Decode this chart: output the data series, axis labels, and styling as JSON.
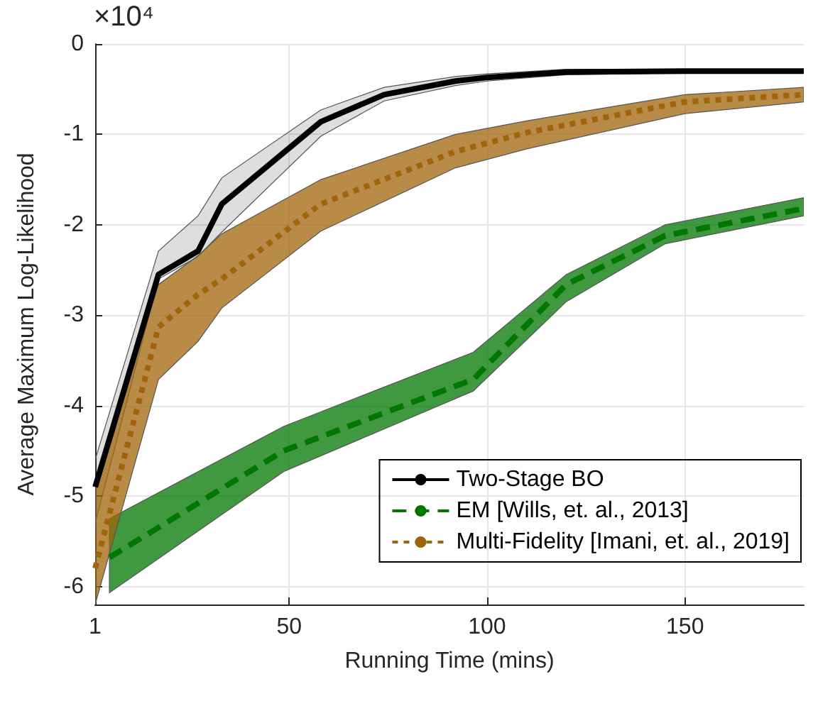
{
  "chart_data": {
    "type": "line",
    "xlabel": "Running Time (mins)",
    "ylabel": "Average Maximum Log-Likelihood",
    "annotations": [
      "×10⁴"
    ],
    "xlim": [
      1,
      180
    ],
    "xticks": [
      1,
      50,
      100,
      150
    ],
    "ylim": [
      -6.2,
      0
    ],
    "yticks": [
      -6,
      -5,
      -4,
      -3,
      -2,
      -1,
      0
    ],
    "grid": true,
    "legend": "bottom right",
    "marker": "none",
    "series": [
      {
        "name": "Two-Stage BO",
        "color": "#000000",
        "line_style": "solid",
        "x": [
          1,
          17,
          27,
          33,
          58,
          74,
          92,
          100,
          120,
          150,
          180
        ],
        "values": [
          -4.9,
          -2.55,
          -2.29,
          -1.77,
          -0.86,
          -0.56,
          -0.41,
          -0.37,
          -0.31,
          -0.3,
          -0.3
        ],
        "lower": [
          -5.3,
          -2.6,
          -2.35,
          -2.08,
          -1.02,
          -0.63,
          -0.46,
          -0.41,
          -0.34,
          -0.32,
          -0.32
        ],
        "upper": [
          -4.6,
          -2.29,
          -1.9,
          -1.48,
          -0.73,
          -0.48,
          -0.36,
          -0.33,
          -0.28,
          -0.28,
          -0.28
        ]
      },
      {
        "name": "EM [Wills, et. al., 2013]",
        "color": "#007700",
        "line_style": "dashed",
        "x": [
          4.6,
          48.6,
          96.5,
          120,
          145,
          180
        ],
        "values": [
          -5.68,
          -4.5,
          -3.71,
          -2.66,
          -2.12,
          -1.82
        ],
        "lower": [
          -6.07,
          -4.73,
          -3.84,
          -2.85,
          -2.21,
          -1.9
        ],
        "upper": [
          -5.25,
          -4.23,
          -3.41,
          -2.55,
          -2.0,
          -1.7
        ]
      },
      {
        "name": "Multi-Fidelity [Imani, et. al., 2019]",
        "color": "#a0650a",
        "line_style": "dotted",
        "x": [
          1,
          17,
          27,
          33,
          58,
          92,
          110,
          150,
          180
        ],
        "values": [
          -5.8,
          -3.13,
          -2.77,
          -2.6,
          -1.77,
          -1.19,
          -0.98,
          -0.64,
          -0.56
        ],
        "lower": [
          -6.2,
          -3.71,
          -3.29,
          -2.92,
          -2.07,
          -1.37,
          -1.16,
          -0.77,
          -0.64
        ],
        "upper": [
          -4.9,
          -2.66,
          -2.34,
          -2.1,
          -1.5,
          -1.0,
          -0.85,
          -0.56,
          -0.48
        ]
      }
    ]
  }
}
